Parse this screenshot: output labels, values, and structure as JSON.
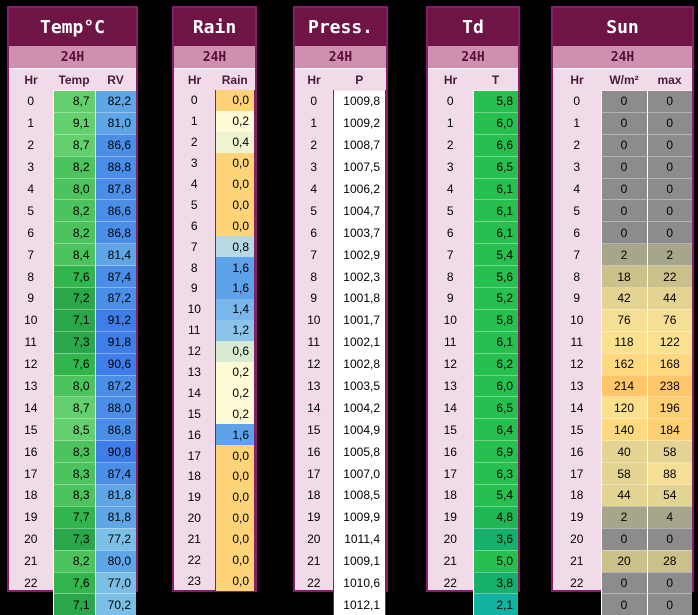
{
  "panels": {
    "temp": {
      "title": "Temp°C",
      "sub": "24H",
      "cols": [
        "Hr",
        "Temp",
        "RV"
      ]
    },
    "rain": {
      "title": "Rain",
      "sub": "24H",
      "cols": [
        "Hr",
        "Rain"
      ]
    },
    "press": {
      "title": "Press.",
      "sub": "24H",
      "cols": [
        "Hr",
        "P"
      ]
    },
    "td": {
      "title": "Td",
      "sub": "24H",
      "cols": [
        "Hr",
        "T"
      ]
    },
    "sun": {
      "title": "Sun",
      "sub": "24H",
      "cols": [
        "Hr",
        "W/m²",
        "max"
      ]
    }
  },
  "hours": [
    "0",
    "1",
    "2",
    "3",
    "4",
    "5",
    "6",
    "7",
    "8",
    "9",
    "10",
    "11",
    "12",
    "13",
    "14",
    "15",
    "16",
    "17",
    "18",
    "19",
    "20",
    "21",
    "22",
    "23"
  ],
  "temp": [
    "8,7",
    "9,1",
    "8,7",
    "8,2",
    "8,0",
    "8,2",
    "8,2",
    "8,4",
    "7,6",
    "7,2",
    "7,1",
    "7,3",
    "7,6",
    "8,0",
    "8,7",
    "8,5",
    "8,3",
    "8,3",
    "8,3",
    "7,7",
    "7,3",
    "8,2",
    "7,6",
    "7,1"
  ],
  "rv": [
    "82,2",
    "81,0",
    "86,6",
    "88,8",
    "87,8",
    "86,6",
    "86,8",
    "81,4",
    "87,4",
    "87,2",
    "91,2",
    "91,8",
    "90,6",
    "87,2",
    "88,0",
    "86,8",
    "90,8",
    "87,4",
    "81,8",
    "81,8",
    "77,2",
    "80,0",
    "77,0",
    "70,2"
  ],
  "rain": [
    "0,0",
    "0,2",
    "0,4",
    "0,0",
    "0,0",
    "0,0",
    "0,0",
    "0,8",
    "1,6",
    "1,6",
    "1,4",
    "1,2",
    "0,6",
    "0,2",
    "0,2",
    "0,2",
    "1,6",
    "0,0",
    "0,0",
    "0,0",
    "0,0",
    "0,0",
    "0,0",
    "0,0"
  ],
  "press": [
    "1009,8",
    "1009,2",
    "1008,7",
    "1007,5",
    "1006,2",
    "1004,7",
    "1003,7",
    "1002,9",
    "1002,3",
    "1001,8",
    "1001,7",
    "1002,1",
    "1002,8",
    "1003,5",
    "1004,2",
    "1004,9",
    "1005,8",
    "1007,0",
    "1008,5",
    "1009,9",
    "1011,4",
    "1009,1",
    "1010,6",
    "1012,1"
  ],
  "dew": [
    "5,8",
    "6,0",
    "6,6",
    "6,5",
    "6,1",
    "6,1",
    "6,1",
    "5,4",
    "5,6",
    "5,2",
    "5,8",
    "6,1",
    "6,2",
    "6,0",
    "6,5",
    "6,4",
    "6,9",
    "6,3",
    "5,4",
    "4,8",
    "3,6",
    "5,0",
    "3,8",
    "2,1"
  ],
  "sun_w": [
    "0",
    "0",
    "0",
    "0",
    "0",
    "0",
    "0",
    "2",
    "18",
    "42",
    "76",
    "118",
    "162",
    "214",
    "120",
    "140",
    "40",
    "58",
    "44",
    "2",
    "0",
    "20",
    "0",
    "0"
  ],
  "sun_max": [
    "0",
    "0",
    "0",
    "0",
    "0",
    "0",
    "0",
    "2",
    "22",
    "44",
    "76",
    "122",
    "168",
    "238",
    "196",
    "184",
    "58",
    "88",
    "54",
    "4",
    "0",
    "28",
    "0",
    "0"
  ]
}
